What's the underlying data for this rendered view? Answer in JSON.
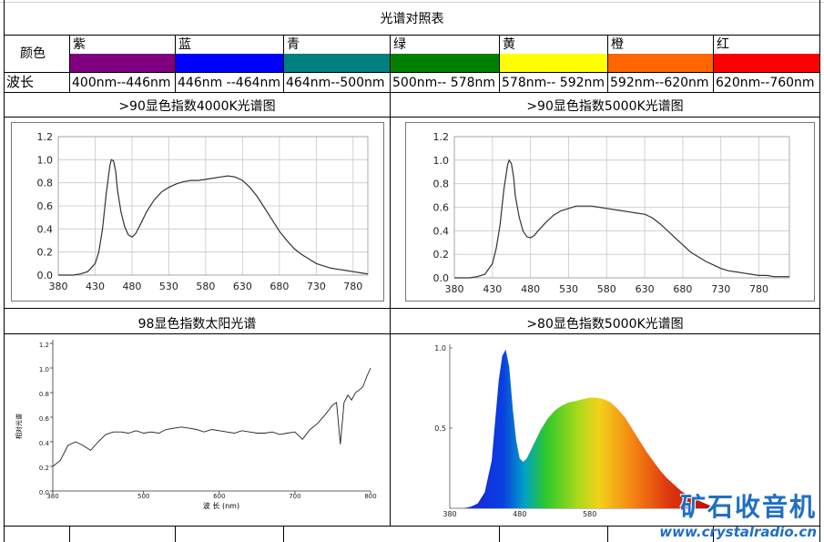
{
  "table": {
    "title": "光谱对照表",
    "row1_label": "颜色",
    "row2_label": "波长",
    "colors": [
      {
        "name": "紫",
        "hex": "#800080",
        "range": "400nm--446nm"
      },
      {
        "name": "蓝",
        "hex": "#0000ff",
        "range": "446nm --464nm"
      },
      {
        "name": "青",
        "hex": "#008080",
        "range": "464nm--500nm"
      },
      {
        "name": "绿",
        "hex": "#008000",
        "range": "500nm-- 578nm"
      },
      {
        "name": "黄",
        "hex": "#ffff00",
        "range": "578nm-- 592nm"
      },
      {
        "name": "橙",
        "hex": "#ff6600",
        "range": "592nm--620nm"
      },
      {
        "name": "红",
        "hex": "#ff0000",
        "range": "620nm--760nm"
      }
    ]
  },
  "chart_titles": {
    "c1": ">90显色指数4000K光谱图",
    "c2": ">90显色指数5000K光谱图",
    "c3": "98显色指数太阳光谱",
    "c4": ">80显色指数5000K光谱图"
  },
  "watermark": {
    "text": "矿石收音机",
    "url": "www.crystalradio.cn"
  },
  "chart_data": [
    {
      "type": "line",
      "title": ">90显色指数4000K光谱图",
      "xlim": [
        380,
        800
      ],
      "ylim": [
        0,
        1.2
      ],
      "xticks": [
        380,
        430,
        480,
        530,
        580,
        630,
        680,
        730,
        780
      ],
      "yticks": [
        0.0,
        0.2,
        0.4,
        0.6,
        0.8,
        1.0,
        1.2
      ],
      "grid": true,
      "x": [
        380,
        400,
        410,
        420,
        430,
        435,
        440,
        445,
        450,
        452,
        455,
        458,
        460,
        465,
        470,
        475,
        480,
        485,
        490,
        500,
        510,
        520,
        530,
        540,
        550,
        560,
        570,
        580,
        590,
        600,
        610,
        620,
        630,
        640,
        650,
        660,
        670,
        680,
        690,
        700,
        710,
        720,
        730,
        740,
        750,
        760,
        770,
        780,
        790,
        800
      ],
      "y": [
        0.0,
        0.0,
        0.01,
        0.03,
        0.1,
        0.2,
        0.4,
        0.7,
        0.95,
        1.0,
        0.99,
        0.9,
        0.75,
        0.55,
        0.42,
        0.35,
        0.33,
        0.36,
        0.42,
        0.55,
        0.65,
        0.72,
        0.76,
        0.79,
        0.81,
        0.82,
        0.82,
        0.83,
        0.84,
        0.85,
        0.86,
        0.85,
        0.82,
        0.76,
        0.68,
        0.58,
        0.48,
        0.38,
        0.3,
        0.23,
        0.18,
        0.14,
        0.1,
        0.08,
        0.06,
        0.05,
        0.04,
        0.03,
        0.02,
        0.01
      ]
    },
    {
      "type": "line",
      "title": ">90显色指数5000K光谱图",
      "xlim": [
        380,
        820
      ],
      "ylim": [
        0,
        1.2
      ],
      "xticks": [
        380,
        430,
        480,
        530,
        580,
        630,
        680,
        730,
        780
      ],
      "yticks": [
        0.0,
        0.2,
        0.4,
        0.6,
        0.8,
        1.0,
        1.2
      ],
      "grid": true,
      "x": [
        380,
        400,
        410,
        420,
        430,
        435,
        440,
        445,
        450,
        452,
        455,
        458,
        460,
        465,
        470,
        475,
        480,
        485,
        490,
        500,
        510,
        520,
        530,
        540,
        550,
        560,
        570,
        580,
        590,
        600,
        610,
        620,
        630,
        640,
        650,
        660,
        670,
        680,
        690,
        700,
        710,
        720,
        730,
        740,
        750,
        760,
        770,
        780,
        790,
        800,
        810,
        820
      ],
      "y": [
        0.0,
        0.0,
        0.01,
        0.03,
        0.12,
        0.25,
        0.45,
        0.75,
        0.96,
        1.0,
        0.97,
        0.85,
        0.7,
        0.52,
        0.4,
        0.35,
        0.34,
        0.36,
        0.4,
        0.47,
        0.53,
        0.57,
        0.59,
        0.61,
        0.61,
        0.61,
        0.6,
        0.59,
        0.58,
        0.57,
        0.56,
        0.55,
        0.54,
        0.51,
        0.46,
        0.4,
        0.34,
        0.28,
        0.22,
        0.18,
        0.14,
        0.11,
        0.08,
        0.06,
        0.05,
        0.04,
        0.03,
        0.02,
        0.02,
        0.01,
        0.01,
        0.01
      ]
    },
    {
      "type": "line",
      "title": "98显色指数太阳光谱",
      "xlabel": "波 长 (nm)",
      "ylabel": "相对光谱",
      "xlim": [
        380,
        800
      ],
      "ylim": [
        0,
        1.2
      ],
      "xticks": [
        380,
        500,
        600,
        700,
        800
      ],
      "yticks": [
        0.0,
        0.2,
        0.4,
        0.6,
        0.8,
        1.0,
        1.2
      ],
      "grid": false,
      "x": [
        380,
        390,
        400,
        410,
        420,
        430,
        440,
        450,
        460,
        470,
        480,
        490,
        500,
        510,
        520,
        530,
        540,
        550,
        560,
        570,
        580,
        590,
        600,
        610,
        620,
        630,
        640,
        650,
        660,
        670,
        680,
        690,
        700,
        710,
        720,
        730,
        740,
        750,
        755,
        760,
        765,
        770,
        775,
        780,
        785,
        790,
        795,
        800
      ],
      "y": [
        0.2,
        0.25,
        0.37,
        0.4,
        0.37,
        0.33,
        0.4,
        0.46,
        0.48,
        0.48,
        0.47,
        0.49,
        0.47,
        0.48,
        0.47,
        0.5,
        0.51,
        0.52,
        0.51,
        0.5,
        0.48,
        0.5,
        0.49,
        0.48,
        0.47,
        0.49,
        0.48,
        0.47,
        0.47,
        0.48,
        0.46,
        0.47,
        0.48,
        0.42,
        0.5,
        0.55,
        0.62,
        0.7,
        0.72,
        0.38,
        0.72,
        0.78,
        0.74,
        0.8,
        0.82,
        0.85,
        0.93,
        1.0
      ]
    },
    {
      "type": "area",
      "title": ">80显色指数5000K光谱图",
      "xlim": [
        380,
        760
      ],
      "ylim": [
        0,
        1.0
      ],
      "xticks": [
        380,
        480,
        580
      ],
      "yticks": [
        0.5,
        1.0
      ],
      "grid": false,
      "x": [
        380,
        400,
        410,
        420,
        430,
        440,
        445,
        450,
        455,
        460,
        465,
        470,
        475,
        480,
        485,
        490,
        500,
        510,
        520,
        530,
        540,
        550,
        560,
        570,
        580,
        590,
        600,
        610,
        620,
        630,
        640,
        650,
        660,
        670,
        680,
        690,
        700,
        710,
        720,
        730,
        740,
        750,
        760
      ],
      "y": [
        0.0,
        0.0,
        0.01,
        0.03,
        0.1,
        0.3,
        0.55,
        0.8,
        0.95,
        0.99,
        0.88,
        0.62,
        0.42,
        0.31,
        0.29,
        0.31,
        0.4,
        0.49,
        0.56,
        0.61,
        0.64,
        0.66,
        0.67,
        0.68,
        0.69,
        0.69,
        0.68,
        0.66,
        0.62,
        0.57,
        0.5,
        0.43,
        0.36,
        0.3,
        0.24,
        0.19,
        0.15,
        0.11,
        0.08,
        0.06,
        0.04,
        0.02,
        0.01
      ]
    }
  ]
}
